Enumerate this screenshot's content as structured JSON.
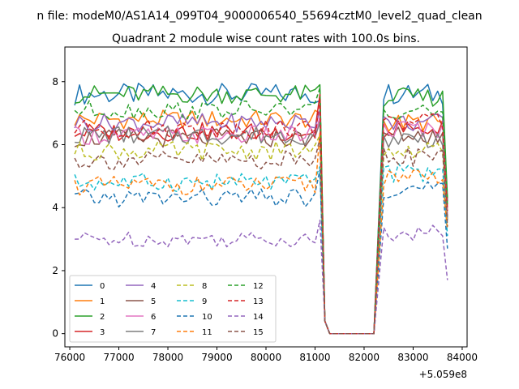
{
  "chart_data": {
    "type": "line",
    "suptitle": "n file: modeM0/AS1A14_099T04_9000006540_55694cztM0_level2_quad_clean",
    "title": "Quadrant 2 module wise count rates with 100.0s bins.",
    "xlabel": "",
    "ylabel": "",
    "x_offset_text": "+5.059e8",
    "xlim": [
      75900,
      84100
    ],
    "ylim": [
      -0.42,
      9.1
    ],
    "x_ticks": [
      76000,
      77000,
      78000,
      79000,
      80000,
      81000,
      82000,
      83000,
      84000
    ],
    "x_tick_labels": [
      "76000",
      "77000",
      "78000",
      "79000",
      "80000",
      "81000",
      "82000",
      "83000",
      "84000"
    ],
    "y_ticks": [
      0,
      2,
      4,
      6,
      8
    ],
    "y_tick_labels": [
      "0",
      "2",
      "4",
      "6",
      "8"
    ],
    "segment1": {
      "x_start": 76100,
      "x_end": 81100,
      "step": 100
    },
    "gap_points": {
      "x": [
        81100,
        81200,
        81300,
        81400,
        82200
      ],
      "y": [
        7.5,
        0.4,
        0.0,
        0.0,
        0.0
      ]
    },
    "segment2": {
      "x_start": 82400,
      "x_end": 83700,
      "step": 100
    },
    "series": [
      {
        "name": "0",
        "color": "#1f77b4",
        "dashed": false,
        "base1": 7.6,
        "amp1": 0.35,
        "base2": 7.6,
        "amp2": 0.35,
        "end1": 7.4,
        "end2": 4.2
      },
      {
        "name": "1",
        "color": "#ff7f0e",
        "dashed": false,
        "base1": 6.8,
        "amp1": 0.3,
        "base2": 6.7,
        "amp2": 0.3,
        "end1": 7.0,
        "end2": 3.9
      },
      {
        "name": "2",
        "color": "#2ca02c",
        "dashed": false,
        "base1": 7.6,
        "amp1": 0.3,
        "base2": 7.5,
        "amp2": 0.3,
        "end1": 7.9,
        "end2": 4.3
      },
      {
        "name": "3",
        "color": "#d62728",
        "dashed": false,
        "base1": 6.4,
        "amp1": 0.3,
        "base2": 6.5,
        "amp2": 0.3,
        "end1": 7.6,
        "end2": 3.7
      },
      {
        "name": "4",
        "color": "#9467bd",
        "dashed": false,
        "base1": 6.7,
        "amp1": 0.3,
        "base2": 6.7,
        "amp2": 0.3,
        "end1": 7.1,
        "end2": 4.0
      },
      {
        "name": "5",
        "color": "#8c564b",
        "dashed": false,
        "base1": 6.2,
        "amp1": 0.3,
        "base2": 6.3,
        "amp2": 0.3,
        "end1": 6.8,
        "end2": 3.6
      },
      {
        "name": "6",
        "color": "#e377c2",
        "dashed": false,
        "base1": 6.3,
        "amp1": 0.3,
        "base2": 6.5,
        "amp2": 0.3,
        "end1": 6.9,
        "end2": 3.8
      },
      {
        "name": "7",
        "color": "#7f7f7f",
        "dashed": false,
        "base1": 6.3,
        "amp1": 0.3,
        "base2": 6.2,
        "amp2": 0.3,
        "end1": 6.7,
        "end2": 3.6
      },
      {
        "name": "8",
        "color": "#bcbd22",
        "dashed": true,
        "base1": 5.8,
        "amp1": 0.3,
        "base2": 5.8,
        "amp2": 0.3,
        "end1": 6.3,
        "end2": 3.4
      },
      {
        "name": "9",
        "color": "#17becf",
        "dashed": true,
        "base1": 4.8,
        "amp1": 0.3,
        "base2": 5.1,
        "amp2": 0.3,
        "end1": 5.3,
        "end2": 3.1
      },
      {
        "name": "10",
        "color": "#1f77b4",
        "dashed": true,
        "base1": 4.3,
        "amp1": 0.3,
        "base2": 4.6,
        "amp2": 0.3,
        "end1": 5.2,
        "end2": 2.7
      },
      {
        "name": "11",
        "color": "#ff7f0e",
        "dashed": true,
        "base1": 4.7,
        "amp1": 0.3,
        "base2": 4.9,
        "amp2": 0.3,
        "end1": 6.4,
        "end2": 3.3
      },
      {
        "name": "12",
        "color": "#2ca02c",
        "dashed": true,
        "base1": 7.1,
        "amp1": 0.3,
        "base2": 7.1,
        "amp2": 0.3,
        "end1": 7.8,
        "end2": 4.1
      },
      {
        "name": "13",
        "color": "#d62728",
        "dashed": true,
        "base1": 6.5,
        "amp1": 0.3,
        "base2": 6.7,
        "amp2": 0.3,
        "end1": 7.5,
        "end2": 3.9
      },
      {
        "name": "14",
        "color": "#9467bd",
        "dashed": true,
        "base1": 3.0,
        "amp1": 0.25,
        "base2": 3.2,
        "amp2": 0.25,
        "end1": 3.6,
        "end2": 1.7
      },
      {
        "name": "15",
        "color": "#8c564b",
        "dashed": true,
        "base1": 5.5,
        "amp1": 0.3,
        "base2": 5.6,
        "amp2": 0.3,
        "end1": 6.2,
        "end2": 3.4
      }
    ],
    "legend_location": "lower-left"
  }
}
